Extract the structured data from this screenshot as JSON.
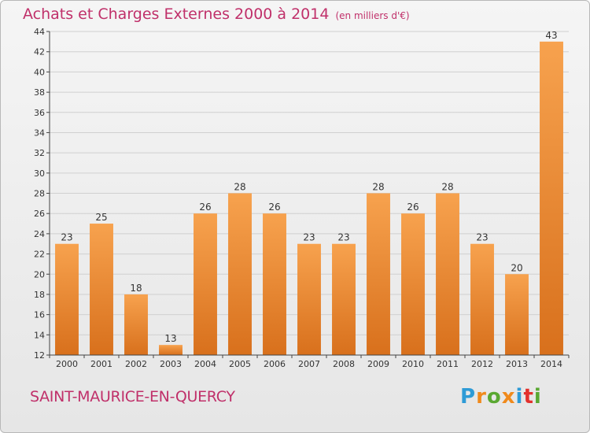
{
  "title": "Achats et Charges Externes 2000 à 2014",
  "unit": "(en milliers d'€)",
  "town": "SAINT-MAURICE-EN-QUERCY",
  "logo": {
    "text": "Proxiti",
    "letters": [
      {
        "ch": "P",
        "color": "#2e9bd6"
      },
      {
        "ch": "r",
        "color": "#f08a1c"
      },
      {
        "ch": "o",
        "color": "#5aa832"
      },
      {
        "ch": "x",
        "color": "#f08a1c"
      },
      {
        "ch": "i",
        "color": "#2e9bd6"
      },
      {
        "ch": "t",
        "color": "#e2312d"
      },
      {
        "ch": "i",
        "color": "#5aa832"
      }
    ]
  },
  "colors": {
    "title": "#c0306a",
    "bar_light": "#f7a24e",
    "bar_dark": "#d8701c",
    "grid": "#d0d0d0"
  },
  "chart_data": {
    "type": "bar",
    "categories": [
      "2000",
      "2001",
      "2002",
      "2003",
      "2004",
      "2005",
      "2006",
      "2007",
      "2008",
      "2009",
      "2010",
      "2011",
      "2012",
      "2013",
      "2014"
    ],
    "values": [
      23,
      25,
      18,
      13,
      26,
      28,
      26,
      23,
      23,
      28,
      26,
      28,
      23,
      20,
      43
    ],
    "ylim": [
      12,
      44
    ],
    "yticks": [
      12,
      14,
      16,
      18,
      20,
      22,
      24,
      26,
      28,
      30,
      32,
      34,
      36,
      38,
      40,
      42,
      44
    ],
    "grid": true
  }
}
